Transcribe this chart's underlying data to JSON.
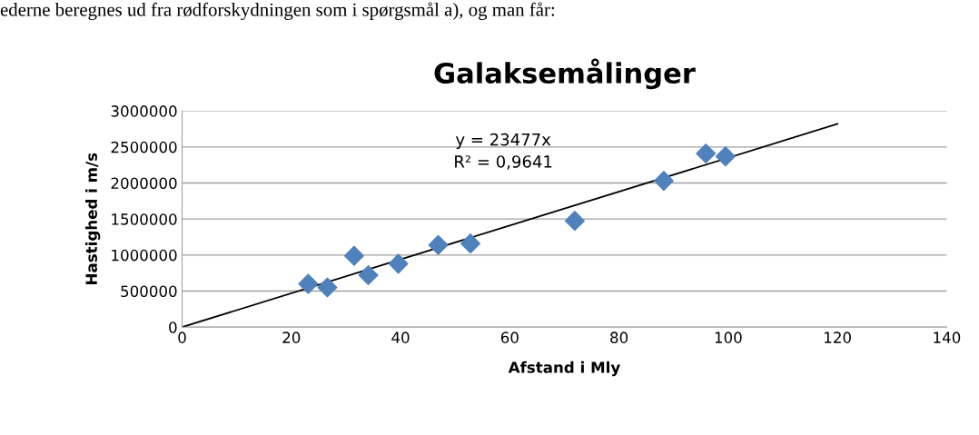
{
  "chart_data": {
    "type": "scatter",
    "title": "Galaksemålinger",
    "xlabel": "Afstand i Mly",
    "ylabel": "Hastighed i m/s",
    "annotations": [
      "ederne beregnes ud fra rødforskydningen som i spørgsmål a), og man får:",
      "y = 23477x\nR² = 0,9641"
    ],
    "series": [
      {
        "color": "#4f81bd",
        "marker": "diamond",
        "x": [
          23.1,
          26.6,
          31.5,
          34.1,
          39.6,
          46.9,
          52.8,
          71.9,
          88.2,
          95.9,
          99.5
        ],
        "values": [
          600000,
          550000,
          990000,
          720000,
          880000,
          1140000,
          1160000,
          1475000,
          2030000,
          2410000,
          2370000
        ]
      },
      {
        "type": "line",
        "color": "#000000",
        "marker": "none",
        "x": [
          0,
          120
        ],
        "values": [
          0,
          2820000
        ]
      }
    ],
    "xlim": [
      0,
      140
    ],
    "xticks": [
      0,
      20,
      40,
      60,
      80,
      100,
      120,
      140
    ],
    "ylim": [
      0,
      3000000
    ],
    "yticks": [
      0,
      500000,
      1000000,
      1500000,
      2000000,
      2500000,
      3000000
    ],
    "grid": "y",
    "legend": false
  }
}
